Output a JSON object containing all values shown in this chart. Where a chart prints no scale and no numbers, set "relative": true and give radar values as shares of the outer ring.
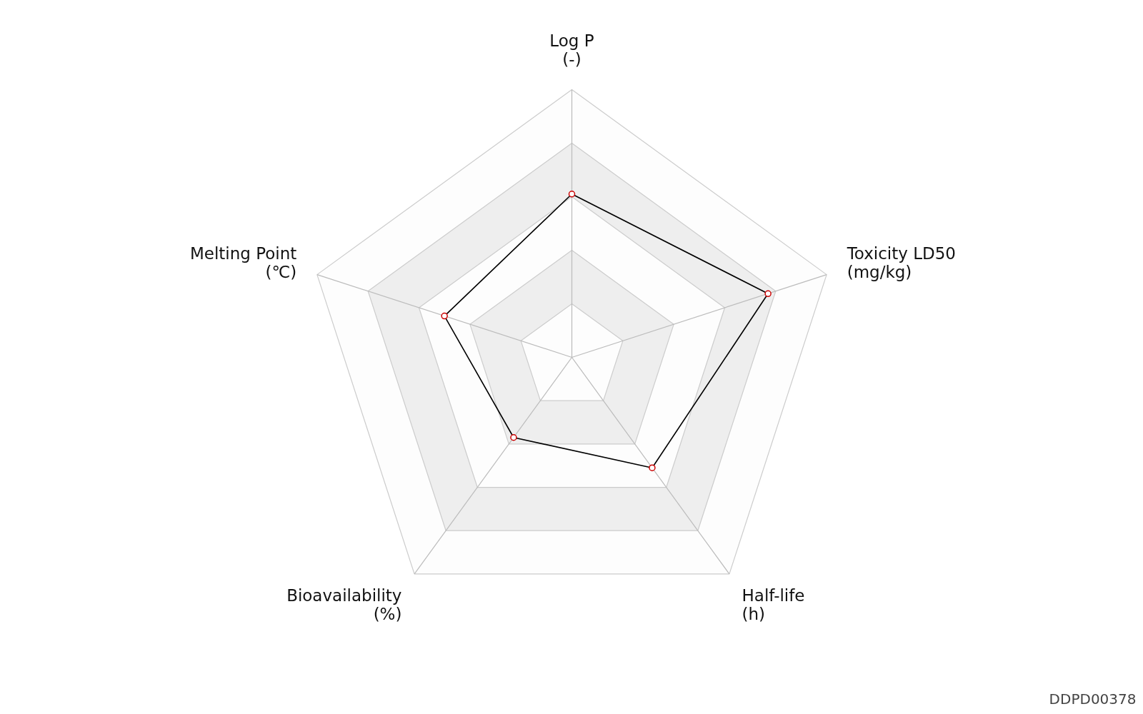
{
  "chart_data": {
    "type": "radar",
    "relative": true,
    "categories": [
      "Log P\n(-)",
      "Toxicity LD50\n(mg/kg)",
      "Half-life\n(h)",
      "Bioavailability\n(%)",
      "Melting Point\n(℃)"
    ],
    "series": [
      {
        "color": "#000000",
        "values": [
          0.61,
          0.77,
          0.51,
          0.37,
          0.5
        ]
      }
    ],
    "marker": "circle",
    "grid": true,
    "annotations": [
      "DDPD00378"
    ]
  }
}
